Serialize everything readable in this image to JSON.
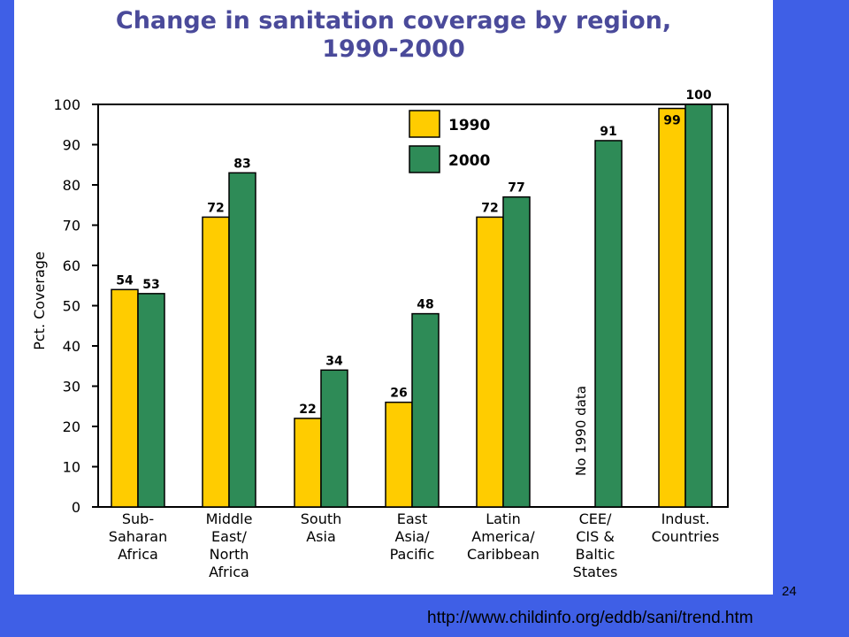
{
  "chart_data": {
    "type": "bar",
    "title": "Change in sanitation coverage by region,\n1990-2000",
    "ylabel": "Pct. Coverage",
    "xlabel": "",
    "ylim": [
      0,
      100
    ],
    "yticks": [
      0,
      10,
      20,
      30,
      40,
      50,
      60,
      70,
      80,
      90,
      100
    ],
    "grid": false,
    "legend_position": "top",
    "categories": [
      [
        "Sub-",
        "Saharan",
        "Africa"
      ],
      [
        "Middle",
        "East/",
        "North",
        "Africa"
      ],
      [
        "South",
        "Asia"
      ],
      [
        "East",
        "Asia/",
        "Pacific"
      ],
      [
        "Latin",
        "America/",
        "Caribbean"
      ],
      [
        "CEE/",
        "CIS &",
        "Baltic",
        "States"
      ],
      [
        "Indust.",
        "Countries"
      ]
    ],
    "series": [
      {
        "name": "1990",
        "color": "#ffcc00",
        "values": [
          54,
          72,
          22,
          26,
          72,
          null,
          99
        ]
      },
      {
        "name": "2000",
        "color": "#2e8b57",
        "values": [
          53,
          83,
          34,
          48,
          77,
          91,
          100
        ]
      }
    ],
    "annotations": [
      {
        "text": "No 1990 data",
        "category_index": 5
      }
    ]
  },
  "slide": {
    "number": "24"
  },
  "source": {
    "url": "http://www.childinfo.org/eddb/sani/trend.htm"
  }
}
